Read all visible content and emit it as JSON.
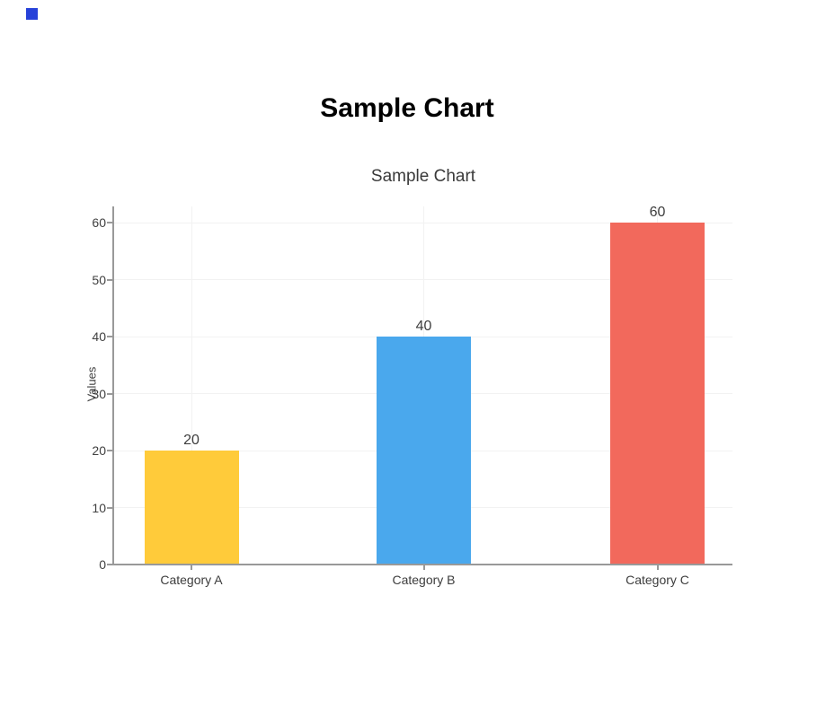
{
  "page": {
    "header_title": "Sample Chart"
  },
  "decoration": {
    "corner_square_color": "#2742d9"
  },
  "chart_data": {
    "type": "bar",
    "title": "Sample Chart",
    "categories": [
      "Category A",
      "Category B",
      "Category C"
    ],
    "values": [
      20,
      40,
      60
    ],
    "value_labels": [
      "20",
      "40",
      "60"
    ],
    "bar_colors": [
      "#ffcb3a",
      "#4aa8ed",
      "#f2695c"
    ],
    "xlabel": "",
    "ylabel": "Values",
    "ylim": [
      0,
      60
    ],
    "yticks": [
      0,
      10,
      20,
      30,
      40,
      50,
      60
    ],
    "grid": true,
    "legend": false,
    "colors": {
      "axis": "#999999",
      "gridline": "#f2f2f2",
      "tick_text": "#404040",
      "title_text": "#3a3a3a",
      "header_text": "#000000"
    }
  }
}
